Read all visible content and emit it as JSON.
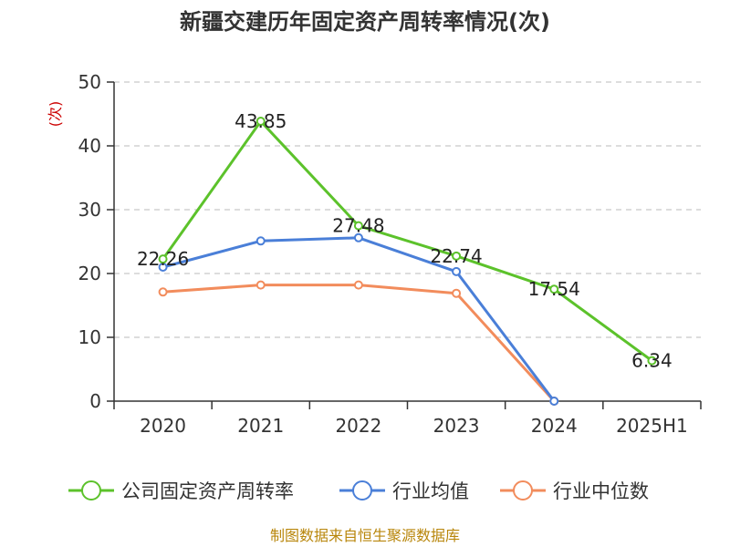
{
  "chart_data": {
    "type": "line",
    "title": "新疆交建历年固定资产周转率情况(次)",
    "unit_label": "(次)",
    "categories": [
      "2020",
      "2021",
      "2022",
      "2023",
      "2024",
      "2025H1"
    ],
    "y_ticks": [
      "0",
      "10",
      "20",
      "30",
      "40",
      "50"
    ],
    "ylim": [
      0,
      50
    ],
    "grid": true,
    "legend_position": "bottom",
    "series": [
      {
        "name": "公司固定资产周转率",
        "color": "#5cc22b",
        "values": [
          22.26,
          43.85,
          27.48,
          22.74,
          17.54,
          6.34
        ],
        "labels": [
          "22.26",
          "43.85",
          "27.48",
          "22.74",
          "17.54",
          "6.34"
        ]
      },
      {
        "name": "行业均值",
        "color": "#4a7fd8",
        "values": [
          21.0,
          25.1,
          25.6,
          20.3,
          0,
          null
        ]
      },
      {
        "name": "行业中位数",
        "color": "#f28c5c",
        "values": [
          17.1,
          18.2,
          18.2,
          16.9,
          0,
          null
        ]
      }
    ],
    "source": "制图数据来自恒生聚源数据库"
  }
}
